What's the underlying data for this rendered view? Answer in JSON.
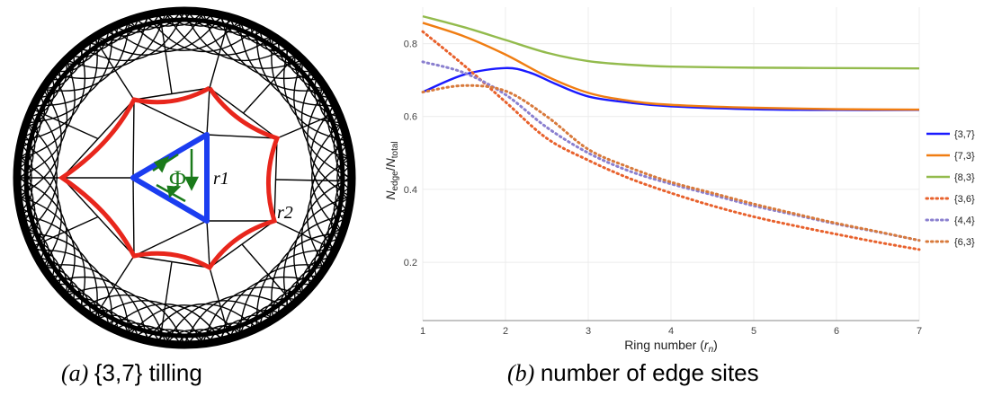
{
  "panel_a": {
    "caption_prefix": "(a)",
    "caption_text": "{3,7} tilling",
    "labels": {
      "phi": "Φ",
      "r1": "r1",
      "r2": "r2"
    },
    "colors": {
      "outer_ring": "#e8261c",
      "inner_ring": "#1b3df0",
      "flux": "#1a7a1a"
    }
  },
  "panel_b": {
    "caption_prefix": "(b)",
    "caption_text": "number of edge sites"
  },
  "chart_data": {
    "type": "line",
    "xlabel": "Ring number (r_n)",
    "ylabel": "N_edge/N_total",
    "xlim": [
      1,
      7
    ],
    "ylim": [
      0.04,
      0.9
    ],
    "xticks": [
      1,
      2,
      3,
      4,
      5,
      6,
      7
    ],
    "yticks": [
      0.2,
      0.4,
      0.6,
      0.8
    ],
    "grid": true,
    "legend_position": "right",
    "series": [
      {
        "name": "{3,7}",
        "style": "solid",
        "color": "#1a1aff",
        "x": [
          1,
          1.5,
          2,
          2.3,
          2.6,
          3,
          3.5,
          4,
          5,
          6,
          7
        ],
        "y": [
          0.667,
          0.715,
          0.733,
          0.72,
          0.69,
          0.655,
          0.638,
          0.628,
          0.62,
          0.618,
          0.618
        ]
      },
      {
        "name": "{7,3}",
        "style": "solid",
        "color": "#f07d12",
        "x": [
          1,
          1.5,
          2,
          2.5,
          3,
          3.5,
          4,
          5,
          6,
          7
        ],
        "y": [
          0.857,
          0.82,
          0.77,
          0.71,
          0.665,
          0.643,
          0.632,
          0.624,
          0.62,
          0.619
        ]
      },
      {
        "name": "{8,3}",
        "style": "solid",
        "color": "#93bb4d",
        "x": [
          1,
          1.5,
          2,
          2.5,
          3,
          3.5,
          4,
          5,
          6,
          7
        ],
        "y": [
          0.875,
          0.845,
          0.81,
          0.775,
          0.752,
          0.742,
          0.737,
          0.734,
          0.733,
          0.732
        ]
      },
      {
        "name": "{3,6}",
        "style": "dotted",
        "color": "#e8612c",
        "x": [
          1,
          1.5,
          2,
          2.5,
          3,
          3.5,
          4,
          4.5,
          5,
          5.5,
          6,
          6.5,
          7
        ],
        "y": [
          0.833,
          0.74,
          0.64,
          0.54,
          0.48,
          0.43,
          0.39,
          0.355,
          0.325,
          0.3,
          0.277,
          0.255,
          0.235
        ]
      },
      {
        "name": "{4,4}",
        "style": "dotted",
        "color": "#8a7fcf",
        "x": [
          1,
          1.5,
          2,
          2.5,
          3,
          3.5,
          4,
          4.5,
          5,
          5.5,
          6,
          6.5,
          7
        ],
        "y": [
          0.75,
          0.72,
          0.66,
          0.57,
          0.5,
          0.45,
          0.415,
          0.385,
          0.355,
          0.33,
          0.305,
          0.283,
          0.26
        ]
      },
      {
        "name": "{6,3}",
        "style": "dotted",
        "color": "#d87a3c",
        "x": [
          1,
          1.5,
          2,
          2.5,
          3,
          3.5,
          4,
          4.5,
          5,
          5.5,
          6,
          6.5,
          7
        ],
        "y": [
          0.667,
          0.685,
          0.67,
          0.6,
          0.51,
          0.46,
          0.42,
          0.39,
          0.36,
          0.333,
          0.307,
          0.284,
          0.26
        ]
      }
    ]
  }
}
